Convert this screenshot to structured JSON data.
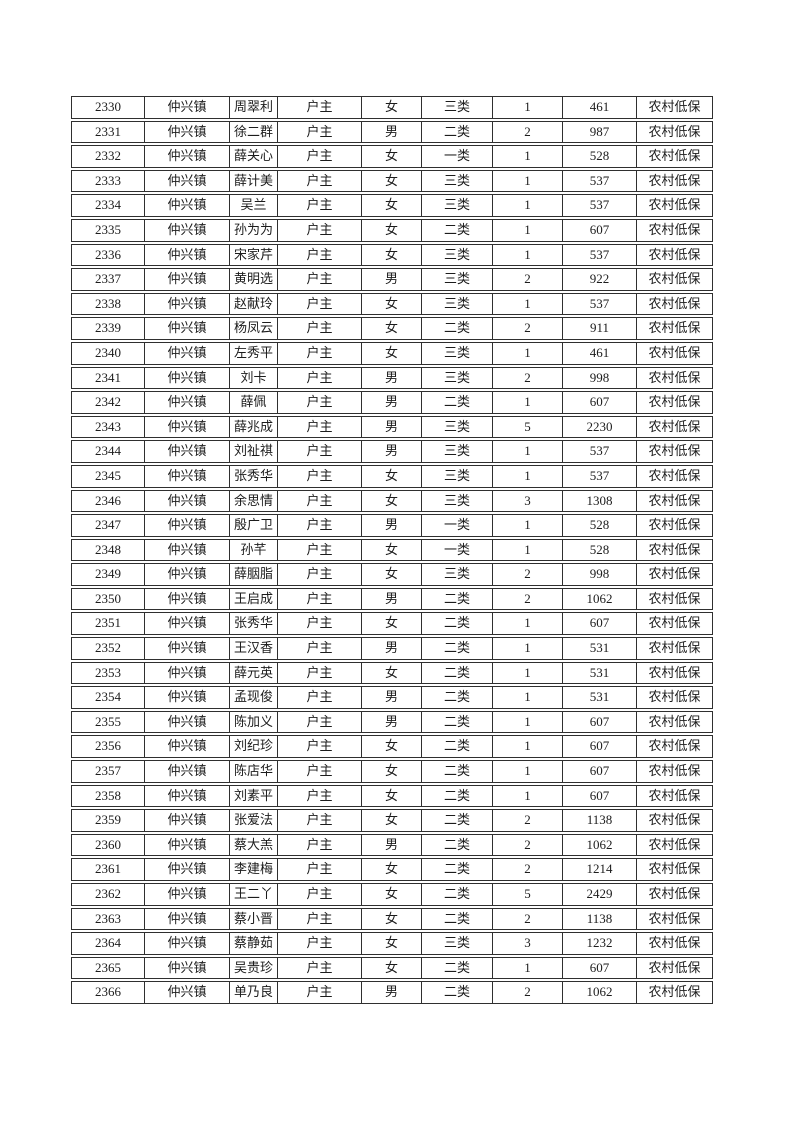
{
  "page": {
    "background_color": "#ffffff",
    "text_color": "#1c1c1c",
    "table_border_color": "#2f2f2f"
  },
  "table": {
    "column_names": [
      "serial-number-cell",
      "town-cell",
      "person-name-cell",
      "relation-cell",
      "gender-cell",
      "category-cell",
      "household-count-cell",
      "amount-cell",
      "subsidy-type-cell"
    ],
    "rows": [
      [
        "2330",
        "仲兴镇",
        "周翠利",
        "户主",
        "女",
        "三类",
        "1",
        "461",
        "农村低保"
      ],
      [
        "2331",
        "仲兴镇",
        "徐二群",
        "户主",
        "男",
        "二类",
        "2",
        "987",
        "农村低保"
      ],
      [
        "2332",
        "仲兴镇",
        "薛关心",
        "户主",
        "女",
        "一类",
        "1",
        "528",
        "农村低保"
      ],
      [
        "2333",
        "仲兴镇",
        "薛计美",
        "户主",
        "女",
        "三类",
        "1",
        "537",
        "农村低保"
      ],
      [
        "2334",
        "仲兴镇",
        "吴兰",
        "户主",
        "女",
        "三类",
        "1",
        "537",
        "农村低保"
      ],
      [
        "2335",
        "仲兴镇",
        "孙为为",
        "户主",
        "女",
        "二类",
        "1",
        "607",
        "农村低保"
      ],
      [
        "2336",
        "仲兴镇",
        "宋家芹",
        "户主",
        "女",
        "三类",
        "1",
        "537",
        "农村低保"
      ],
      [
        "2337",
        "仲兴镇",
        "黄明选",
        "户主",
        "男",
        "三类",
        "2",
        "922",
        "农村低保"
      ],
      [
        "2338",
        "仲兴镇",
        "赵献玲",
        "户主",
        "女",
        "三类",
        "1",
        "537",
        "农村低保"
      ],
      [
        "2339",
        "仲兴镇",
        "杨凤云",
        "户主",
        "女",
        "二类",
        "2",
        "911",
        "农村低保"
      ],
      [
        "2340",
        "仲兴镇",
        "左秀平",
        "户主",
        "女",
        "三类",
        "1",
        "461",
        "农村低保"
      ],
      [
        "2341",
        "仲兴镇",
        "刘卡",
        "户主",
        "男",
        "三类",
        "2",
        "998",
        "农村低保"
      ],
      [
        "2342",
        "仲兴镇",
        "薛佩",
        "户主",
        "男",
        "二类",
        "1",
        "607",
        "农村低保"
      ],
      [
        "2343",
        "仲兴镇",
        "薛兆成",
        "户主",
        "男",
        "三类",
        "5",
        "2230",
        "农村低保"
      ],
      [
        "2344",
        "仲兴镇",
        "刘祉祺",
        "户主",
        "男",
        "三类",
        "1",
        "537",
        "农村低保"
      ],
      [
        "2345",
        "仲兴镇",
        "张秀华",
        "户主",
        "女",
        "三类",
        "1",
        "537",
        "农村低保"
      ],
      [
        "2346",
        "仲兴镇",
        "余思情",
        "户主",
        "女",
        "三类",
        "3",
        "1308",
        "农村低保"
      ],
      [
        "2347",
        "仲兴镇",
        "殷广卫",
        "户主",
        "男",
        "一类",
        "1",
        "528",
        "农村低保"
      ],
      [
        "2348",
        "仲兴镇",
        "孙芊",
        "户主",
        "女",
        "一类",
        "1",
        "528",
        "农村低保"
      ],
      [
        "2349",
        "仲兴镇",
        "薛胭脂",
        "户主",
        "女",
        "三类",
        "2",
        "998",
        "农村低保"
      ],
      [
        "2350",
        "仲兴镇",
        "王启成",
        "户主",
        "男",
        "二类",
        "2",
        "1062",
        "农村低保"
      ],
      [
        "2351",
        "仲兴镇",
        "张秀华",
        "户主",
        "女",
        "二类",
        "1",
        "607",
        "农村低保"
      ],
      [
        "2352",
        "仲兴镇",
        "王汉香",
        "户主",
        "男",
        "二类",
        "1",
        "531",
        "农村低保"
      ],
      [
        "2353",
        "仲兴镇",
        "薛元英",
        "户主",
        "女",
        "二类",
        "1",
        "531",
        "农村低保"
      ],
      [
        "2354",
        "仲兴镇",
        "孟现俊",
        "户主",
        "男",
        "二类",
        "1",
        "531",
        "农村低保"
      ],
      [
        "2355",
        "仲兴镇",
        "陈加义",
        "户主",
        "男",
        "二类",
        "1",
        "607",
        "农村低保"
      ],
      [
        "2356",
        "仲兴镇",
        "刘纪珍",
        "户主",
        "女",
        "二类",
        "1",
        "607",
        "农村低保"
      ],
      [
        "2357",
        "仲兴镇",
        "陈店华",
        "户主",
        "女",
        "二类",
        "1",
        "607",
        "农村低保"
      ],
      [
        "2358",
        "仲兴镇",
        "刘素平",
        "户主",
        "女",
        "二类",
        "1",
        "607",
        "农村低保"
      ],
      [
        "2359",
        "仲兴镇",
        "张爱法",
        "户主",
        "女",
        "二类",
        "2",
        "1138",
        "农村低保"
      ],
      [
        "2360",
        "仲兴镇",
        "蔡大羔",
        "户主",
        "男",
        "二类",
        "2",
        "1062",
        "农村低保"
      ],
      [
        "2361",
        "仲兴镇",
        "李建梅",
        "户主",
        "女",
        "二类",
        "2",
        "1214",
        "农村低保"
      ],
      [
        "2362",
        "仲兴镇",
        "王二丫",
        "户主",
        "女",
        "二类",
        "5",
        "2429",
        "农村低保"
      ],
      [
        "2363",
        "仲兴镇",
        "蔡小晋",
        "户主",
        "女",
        "二类",
        "2",
        "1138",
        "农村低保"
      ],
      [
        "2364",
        "仲兴镇",
        "蔡静茹",
        "户主",
        "女",
        "三类",
        "3",
        "1232",
        "农村低保"
      ],
      [
        "2365",
        "仲兴镇",
        "吴贵珍",
        "户主",
        "女",
        "二类",
        "1",
        "607",
        "农村低保"
      ],
      [
        "2366",
        "仲兴镇",
        "单乃良",
        "户主",
        "男",
        "二类",
        "2",
        "1062",
        "农村低保"
      ]
    ]
  }
}
